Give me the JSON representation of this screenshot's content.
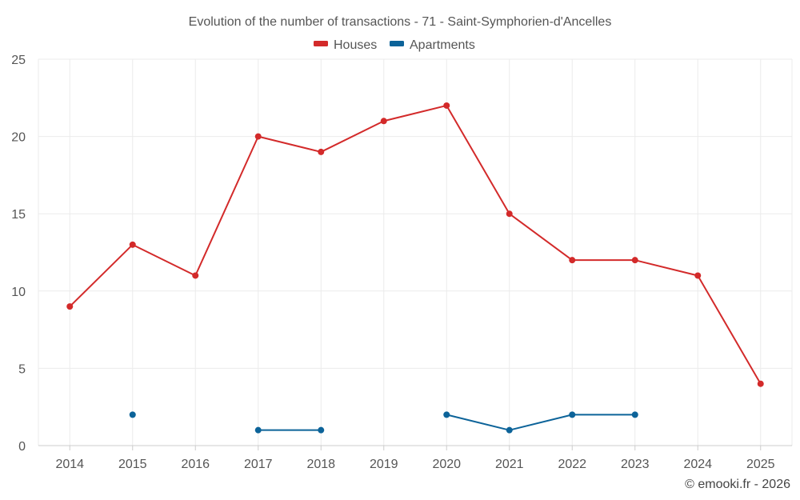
{
  "chart_data": {
    "type": "line",
    "title": "Evolution of the number of transactions - 71 - Saint-Symphorien-d'Ancelles",
    "xlabel": "",
    "ylabel": "",
    "categories": [
      "2014",
      "2015",
      "2016",
      "2017",
      "2018",
      "2019",
      "2020",
      "2021",
      "2022",
      "2023",
      "2024",
      "2025"
    ],
    "ylim": [
      0,
      25
    ],
    "yticks": [
      0,
      5,
      10,
      15,
      20,
      25
    ],
    "grid": true,
    "legend_position": "top-center",
    "series": [
      {
        "name": "Houses",
        "color": "#d32a2a",
        "values": [
          9,
          13,
          11,
          20,
          19,
          21,
          22,
          15,
          12,
          12,
          11,
          4
        ]
      },
      {
        "name": "Apartments",
        "color": "#0c6399",
        "values": [
          null,
          2,
          null,
          1,
          1,
          null,
          2,
          1,
          2,
          2,
          null,
          null
        ]
      }
    ]
  },
  "credit": "© emooki.fr - 2026"
}
